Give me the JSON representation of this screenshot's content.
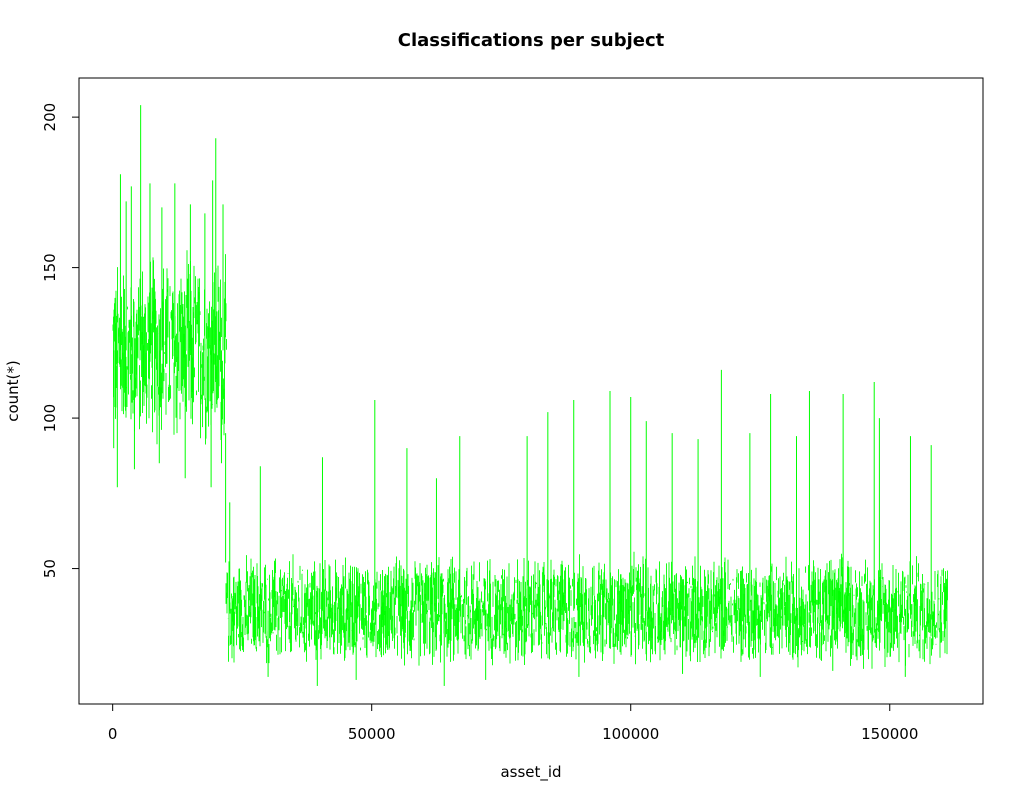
{
  "chart_data": {
    "type": "line",
    "title": "Classifications per subject",
    "xlabel": "asset_id",
    "ylabel": "count(*)",
    "xlim": [
      -6500,
      168000
    ],
    "ylim": [
      5,
      213
    ],
    "x_ticks": [
      0,
      50000,
      100000,
      150000
    ],
    "y_ticks": [
      50,
      100,
      150,
      200
    ],
    "line_color": "#00ff00",
    "grid": false,
    "legend": "none",
    "series": [
      {
        "segments": [
          {
            "x_start": 0,
            "x_end": 21800,
            "typical_low": 95,
            "typical_high": 150,
            "min": 77,
            "max": 204,
            "spikes": [
              [
                1500,
                181
              ],
              [
                2600,
                172
              ],
              [
                3600,
                177
              ],
              [
                5400,
                204
              ],
              [
                7200,
                178
              ],
              [
                9500,
                170
              ],
              [
                12000,
                178
              ],
              [
                15000,
                171
              ],
              [
                17800,
                168
              ],
              [
                19300,
                179
              ],
              [
                19900,
                193
              ],
              [
                21300,
                171
              ]
            ],
            "dips": [
              [
                200,
                90
              ],
              [
                900,
                77
              ],
              [
                4200,
                83
              ],
              [
                9000,
                85
              ],
              [
                14000,
                80
              ],
              [
                19000,
                77
              ],
              [
                21000,
                85
              ]
            ]
          },
          {
            "x_start": 21800,
            "x_end": 161000,
            "typical_low": 20,
            "typical_high": 52,
            "min": 11,
            "max": 116,
            "spikes": [
              [
                22600,
                72
              ],
              [
                28500,
                84
              ],
              [
                40500,
                87
              ],
              [
                50600,
                106
              ],
              [
                56800,
                90
              ],
              [
                62500,
                80
              ],
              [
                67000,
                94
              ],
              [
                80000,
                94
              ],
              [
                84000,
                102
              ],
              [
                89000,
                106
              ],
              [
                96000,
                109
              ],
              [
                100000,
                107
              ],
              [
                103000,
                99
              ],
              [
                108000,
                95
              ],
              [
                113000,
                93
              ],
              [
                117500,
                116
              ],
              [
                123000,
                95
              ],
              [
                127000,
                108
              ],
              [
                132000,
                94
              ],
              [
                134500,
                109
              ],
              [
                141000,
                108
              ],
              [
                147000,
                112
              ],
              [
                148000,
                100
              ],
              [
                154000,
                94
              ],
              [
                158000,
                91
              ]
            ],
            "dips": [
              [
                30000,
                14
              ],
              [
                39500,
                11
              ],
              [
                47000,
                13
              ],
              [
                64000,
                11
              ],
              [
                72000,
                13
              ],
              [
                90000,
                14
              ],
              [
                110000,
                15
              ],
              [
                125000,
                14
              ],
              [
                139000,
                16
              ],
              [
                153000,
                14
              ]
            ]
          }
        ]
      }
    ]
  }
}
